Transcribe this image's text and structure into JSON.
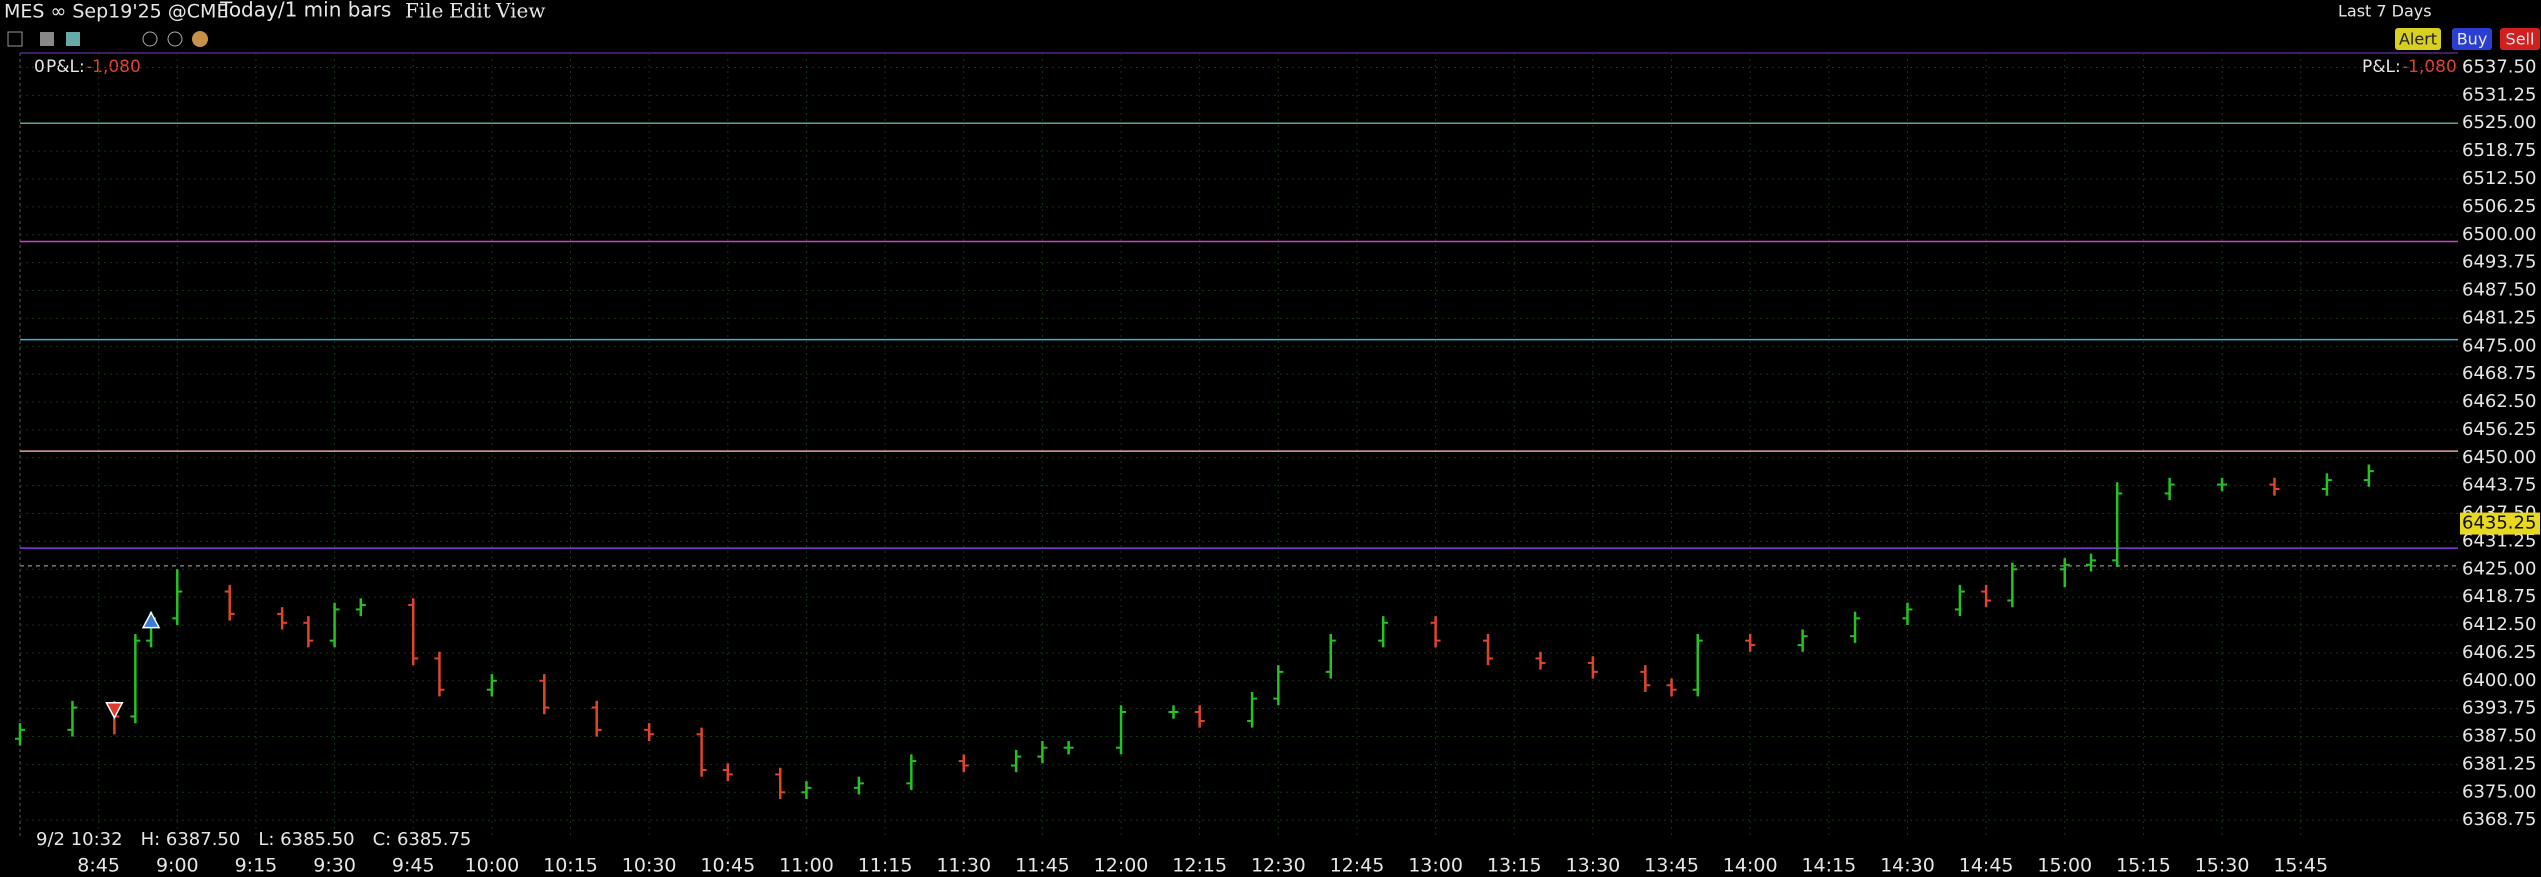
{
  "toolbar": {
    "instrument": "MES ∞ Sep19'25 @CME",
    "period": "Today/1 min bars",
    "menus": [
      "File",
      "Edit",
      "View"
    ],
    "range": "Last 7 Days",
    "buttons": [
      "Alert",
      "Buy",
      "Sell"
    ]
  },
  "chart_data": {
    "type": "ohlc",
    "pnl": {
      "position": "0",
      "label": "P&L:",
      "value": "-1,080"
    },
    "x": [
      "8:30",
      "8:40",
      "8:48",
      "8:52",
      "8:55",
      "9:00",
      "9:10",
      "9:20",
      "9:25",
      "9:30",
      "9:35",
      "9:45",
      "9:50",
      "10:00",
      "10:10",
      "10:20",
      "10:30",
      "10:40",
      "10:45",
      "10:55",
      "11:00",
      "11:10",
      "11:20",
      "11:30",
      "11:40",
      "11:45",
      "11:50",
      "12:00",
      "12:10",
      "12:15",
      "12:25",
      "12:30",
      "12:40",
      "12:50",
      "13:00",
      "13:10",
      "13:20",
      "13:30",
      "13:40",
      "13:45",
      "13:50",
      "14:00",
      "14:10",
      "14:20",
      "14:30",
      "14:40",
      "14:45",
      "14:50",
      "15:00",
      "15:05",
      "15:10",
      "15:20",
      "15:30",
      "15:40",
      "15:50",
      "15:58"
    ],
    "open": [
      6387,
      6389,
      6394,
      6392,
      6409,
      6414,
      6420,
      6415,
      6413,
      6409,
      6416,
      6417,
      6405,
      6398,
      6400,
      6394,
      6389,
      6388,
      6380,
      6379,
      6375,
      6376,
      6377,
      6382,
      6381,
      6383,
      6385,
      6385,
      6393,
      6393,
      6391,
      6396,
      6402,
      6409,
      6413,
      6409,
      6405,
      6404,
      6402,
      6399,
      6398,
      6409,
      6408,
      6410,
      6414,
      6416,
      6420,
      6418,
      6425,
      6426,
      6427,
      6442,
      6444,
      6444,
      6443,
      6445
    ],
    "high": [
      6390.5,
      6395.5,
      6395.5,
      6410.5,
      6415.5,
      6425,
      6421.5,
      6416.5,
      6414.5,
      6417.5,
      6418.5,
      6418.5,
      6406.5,
      6401.5,
      6401.5,
      6395.5,
      6390.5,
      6389.5,
      6381.5,
      6380.5,
      6377.5,
      6378.5,
      6383.5,
      6383.5,
      6384.5,
      6386.5,
      6386.5,
      6394.5,
      6394.5,
      6394.5,
      6397.5,
      6403.5,
      6410.5,
      6414.5,
      6414.5,
      6410.5,
      6406.5,
      6405.5,
      6403.5,
      6400.5,
      6410.5,
      6410.5,
      6411.5,
      6415.5,
      6417.5,
      6421.5,
      6421.5,
      6426.5,
      6427.5,
      6428.5,
      6444.5,
      6445.5,
      6445.5,
      6445.5,
      6446.5,
      6448.5
    ],
    "low": [
      6385.5,
      6387.5,
      6388,
      6390.5,
      6407.5,
      6412.5,
      6413.5,
      6411.5,
      6407.5,
      6407.5,
      6414.5,
      6403.5,
      6396.5,
      6396.5,
      6392.5,
      6387.5,
      6386.5,
      6378.5,
      6377.5,
      6373.5,
      6373.5,
      6374.5,
      6375.5,
      6379.5,
      6379.5,
      6381.5,
      6383.5,
      6383.5,
      6391.5,
      6389.5,
      6389.5,
      6394.5,
      6400.5,
      6407.5,
      6407.5,
      6403.5,
      6402.5,
      6400.5,
      6397.5,
      6396.5,
      6396.5,
      6406.5,
      6406.5,
      6408.5,
      6412.5,
      6414.5,
      6416.5,
      6416.5,
      6421,
      6424.5,
      6425.5,
      6440.5,
      6442.5,
      6441.5,
      6441.5,
      6443.5
    ],
    "close": [
      6389,
      6394,
      6392,
      6409,
      6414,
      6420,
      6415,
      6413,
      6409,
      6416,
      6417,
      6405,
      6398,
      6400,
      6394,
      6389,
      6388,
      6380,
      6379,
      6375,
      6376,
      6377,
      6382,
      6381,
      6383,
      6385,
      6385,
      6393,
      6393,
      6391,
      6396,
      6402,
      6409,
      6413,
      6409,
      6405,
      6404,
      6402,
      6399,
      6398,
      6409,
      6408,
      6410,
      6414,
      6416,
      6420,
      6418,
      6425,
      6426,
      6427,
      6442,
      6444,
      6444,
      6443,
      6445,
      6447
    ],
    "up_color": "#22c322",
    "down_color": "#e0442c",
    "levels": [
      {
        "value": 6525,
        "color": "#4fa89a",
        "style": "solid"
      },
      {
        "value": 6498.5,
        "color": "#d23cd2",
        "style": "solid"
      },
      {
        "value": 6476.5,
        "color": "#3cb0d8",
        "style": "solid"
      },
      {
        "value": 6451.5,
        "color": "#e8a49a",
        "style": "solid"
      },
      {
        "value": 6429.75,
        "color": "#8a3ce0",
        "style": "solid"
      },
      {
        "value": 6425.75,
        "color": "#777777",
        "style": "dashed"
      }
    ],
    "markers": [
      {
        "x": "8:55",
        "value": 6413.5,
        "direction": "up",
        "color": "#3a7bd5"
      },
      {
        "x": "8:48",
        "value": 6393.5,
        "direction": "down",
        "color": "#e03a2a"
      }
    ],
    "last_price": 6435.25,
    "info": [
      "9/2 10:32",
      "H: 6387.50",
      "L: 6385.50",
      "C: 6385.75"
    ],
    "xlim": [
      "8:30",
      "16:15"
    ],
    "xticks": [
      "8:45",
      "9:00",
      "9:15",
      "9:30",
      "9:45",
      "10:00",
      "10:15",
      "10:30",
      "10:45",
      "11:00",
      "11:15",
      "11:30",
      "11:45",
      "12:00",
      "12:15",
      "12:30",
      "12:45",
      "13:00",
      "13:15",
      "13:30",
      "13:45",
      "14:00",
      "14:15",
      "14:30",
      "14:45",
      "15:00",
      "15:15",
      "15:30",
      "15:45"
    ],
    "ylim": [
      6364.75,
      6540.75
    ],
    "yticks": [
      6368.75,
      {
        "value": 6375,
        "label": "6375.00"
      },
      6381.25,
      {
        "value": 6387.5,
        "label": "6387.50"
      },
      6393.75,
      {
        "value": 6400,
        "label": "6400.00"
      },
      6406.25,
      {
        "value": 6412.5,
        "label": "6412.50"
      },
      6418.75,
      {
        "value": 6425,
        "label": "6425.00"
      },
      6431.25,
      {
        "value": 6437.5,
        "label": "6437.50"
      },
      6443.75,
      {
        "value": 6450,
        "label": "6450.00"
      },
      6456.25,
      {
        "value": 6462.5,
        "label": "6462.50"
      },
      6468.75,
      {
        "value": 6475,
        "label": "6475.00"
      },
      6481.25,
      {
        "value": 6487.5,
        "label": "6487.50"
      },
      6493.75,
      {
        "value": 6500,
        "label": "6500.00"
      },
      6506.25,
      {
        "value": 6512.5,
        "label": "6512.50"
      },
      6518.75,
      {
        "value": 6525,
        "label": "6525.00"
      },
      6531.25,
      {
        "value": 6537.5,
        "label": "6537.50"
      }
    ],
    "grid": true
  }
}
